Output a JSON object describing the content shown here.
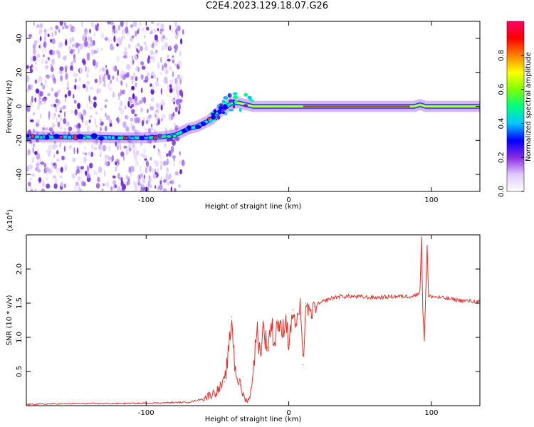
{
  "title": "C2E4.2023.129.18.07.G26",
  "chart_data": [
    {
      "type": "heatmap",
      "xlabel": "Height of straight line (km)",
      "ylabel": "Frequency (Hz)",
      "xlim": [
        -184,
        134
      ],
      "ylim": [
        -50,
        50
      ],
      "xticks": [
        "-100",
        "0",
        "100"
      ],
      "yticks": [
        "-40",
        "-20",
        "0",
        "20",
        "40"
      ],
      "grid": false,
      "colorbar": {
        "label": "Normalized spectral amplitude",
        "range": [
          0.0,
          1.0
        ],
        "ticks": [
          "0.0",
          "0.2",
          "0.4",
          "0.6",
          "0.8"
        ],
        "colors": [
          "#ffffff",
          "#e0c8ff",
          "#8a2be2",
          "#0000ff",
          "#00c8ff",
          "#00ff80",
          "#80ff00",
          "#ffff00",
          "#ff8000",
          "#ff0000",
          "#ff0066"
        ]
      },
      "trace": {
        "x": [
          -184,
          -160,
          -140,
          -120,
          -100,
          -90,
          -80,
          -75,
          -70,
          -65,
          -60,
          -55,
          -50,
          -45,
          -40,
          -35,
          -30,
          -25,
          -20,
          -10,
          0,
          10,
          30,
          60,
          80,
          88,
          92,
          96,
          110,
          134
        ],
        "y": [
          -18,
          -18,
          -18,
          -18.5,
          -18.5,
          -18,
          -17,
          -15,
          -13,
          -12,
          -10,
          -8,
          -4,
          -1,
          2,
          2,
          1,
          0,
          0,
          0,
          0,
          0,
          0,
          0,
          0,
          0,
          1,
          0,
          0,
          0
        ]
      },
      "noise_region_x": [
        -184,
        -74
      ]
    },
    {
      "type": "line",
      "xlabel": "Height of straight line (km)",
      "ylabel": "SNR (10 * v/v)",
      "yscale_label": "(x10",
      "yscale_exp": "4",
      "xlim": [
        -184,
        134
      ],
      "ylim": [
        0,
        2.5
      ],
      "xticks": [
        "-100",
        "0",
        "100"
      ],
      "yticks": [
        "0.5",
        "1.0",
        "1.5",
        "2.0"
      ],
      "grid": false,
      "color": "#e8302a",
      "x": [
        -184,
        -150,
        -120,
        -90,
        -70,
        -60,
        -50,
        -45,
        -42,
        -40,
        -38,
        -36,
        -34,
        -32,
        -30,
        -27,
        -25,
        -22,
        -20,
        -18,
        -15,
        -12,
        -10,
        -8,
        -5,
        -2,
        0,
        3,
        5,
        8,
        10,
        12,
        15,
        18,
        22,
        28,
        35,
        45,
        60,
        75,
        85,
        90,
        92,
        93,
        94,
        95,
        96,
        97,
        98,
        100,
        110,
        120,
        134
      ],
      "y": [
        0.02,
        0.03,
        0.03,
        0.04,
        0.05,
        0.1,
        0.22,
        0.35,
        0.8,
        1.3,
        0.6,
        0.4,
        0.3,
        0.15,
        0.08,
        0.12,
        0.55,
        1.1,
        0.75,
        1.15,
        0.85,
        1.2,
        0.9,
        1.25,
        1.05,
        1.3,
        0.9,
        1.4,
        1.15,
        1.45,
        0.6,
        1.5,
        1.3,
        1.45,
        1.5,
        1.56,
        1.6,
        1.6,
        1.58,
        1.6,
        1.6,
        1.62,
        1.7,
        2.45,
        1.4,
        0.95,
        1.65,
        2.35,
        1.6,
        1.6,
        1.57,
        1.54,
        1.52
      ]
    }
  ]
}
